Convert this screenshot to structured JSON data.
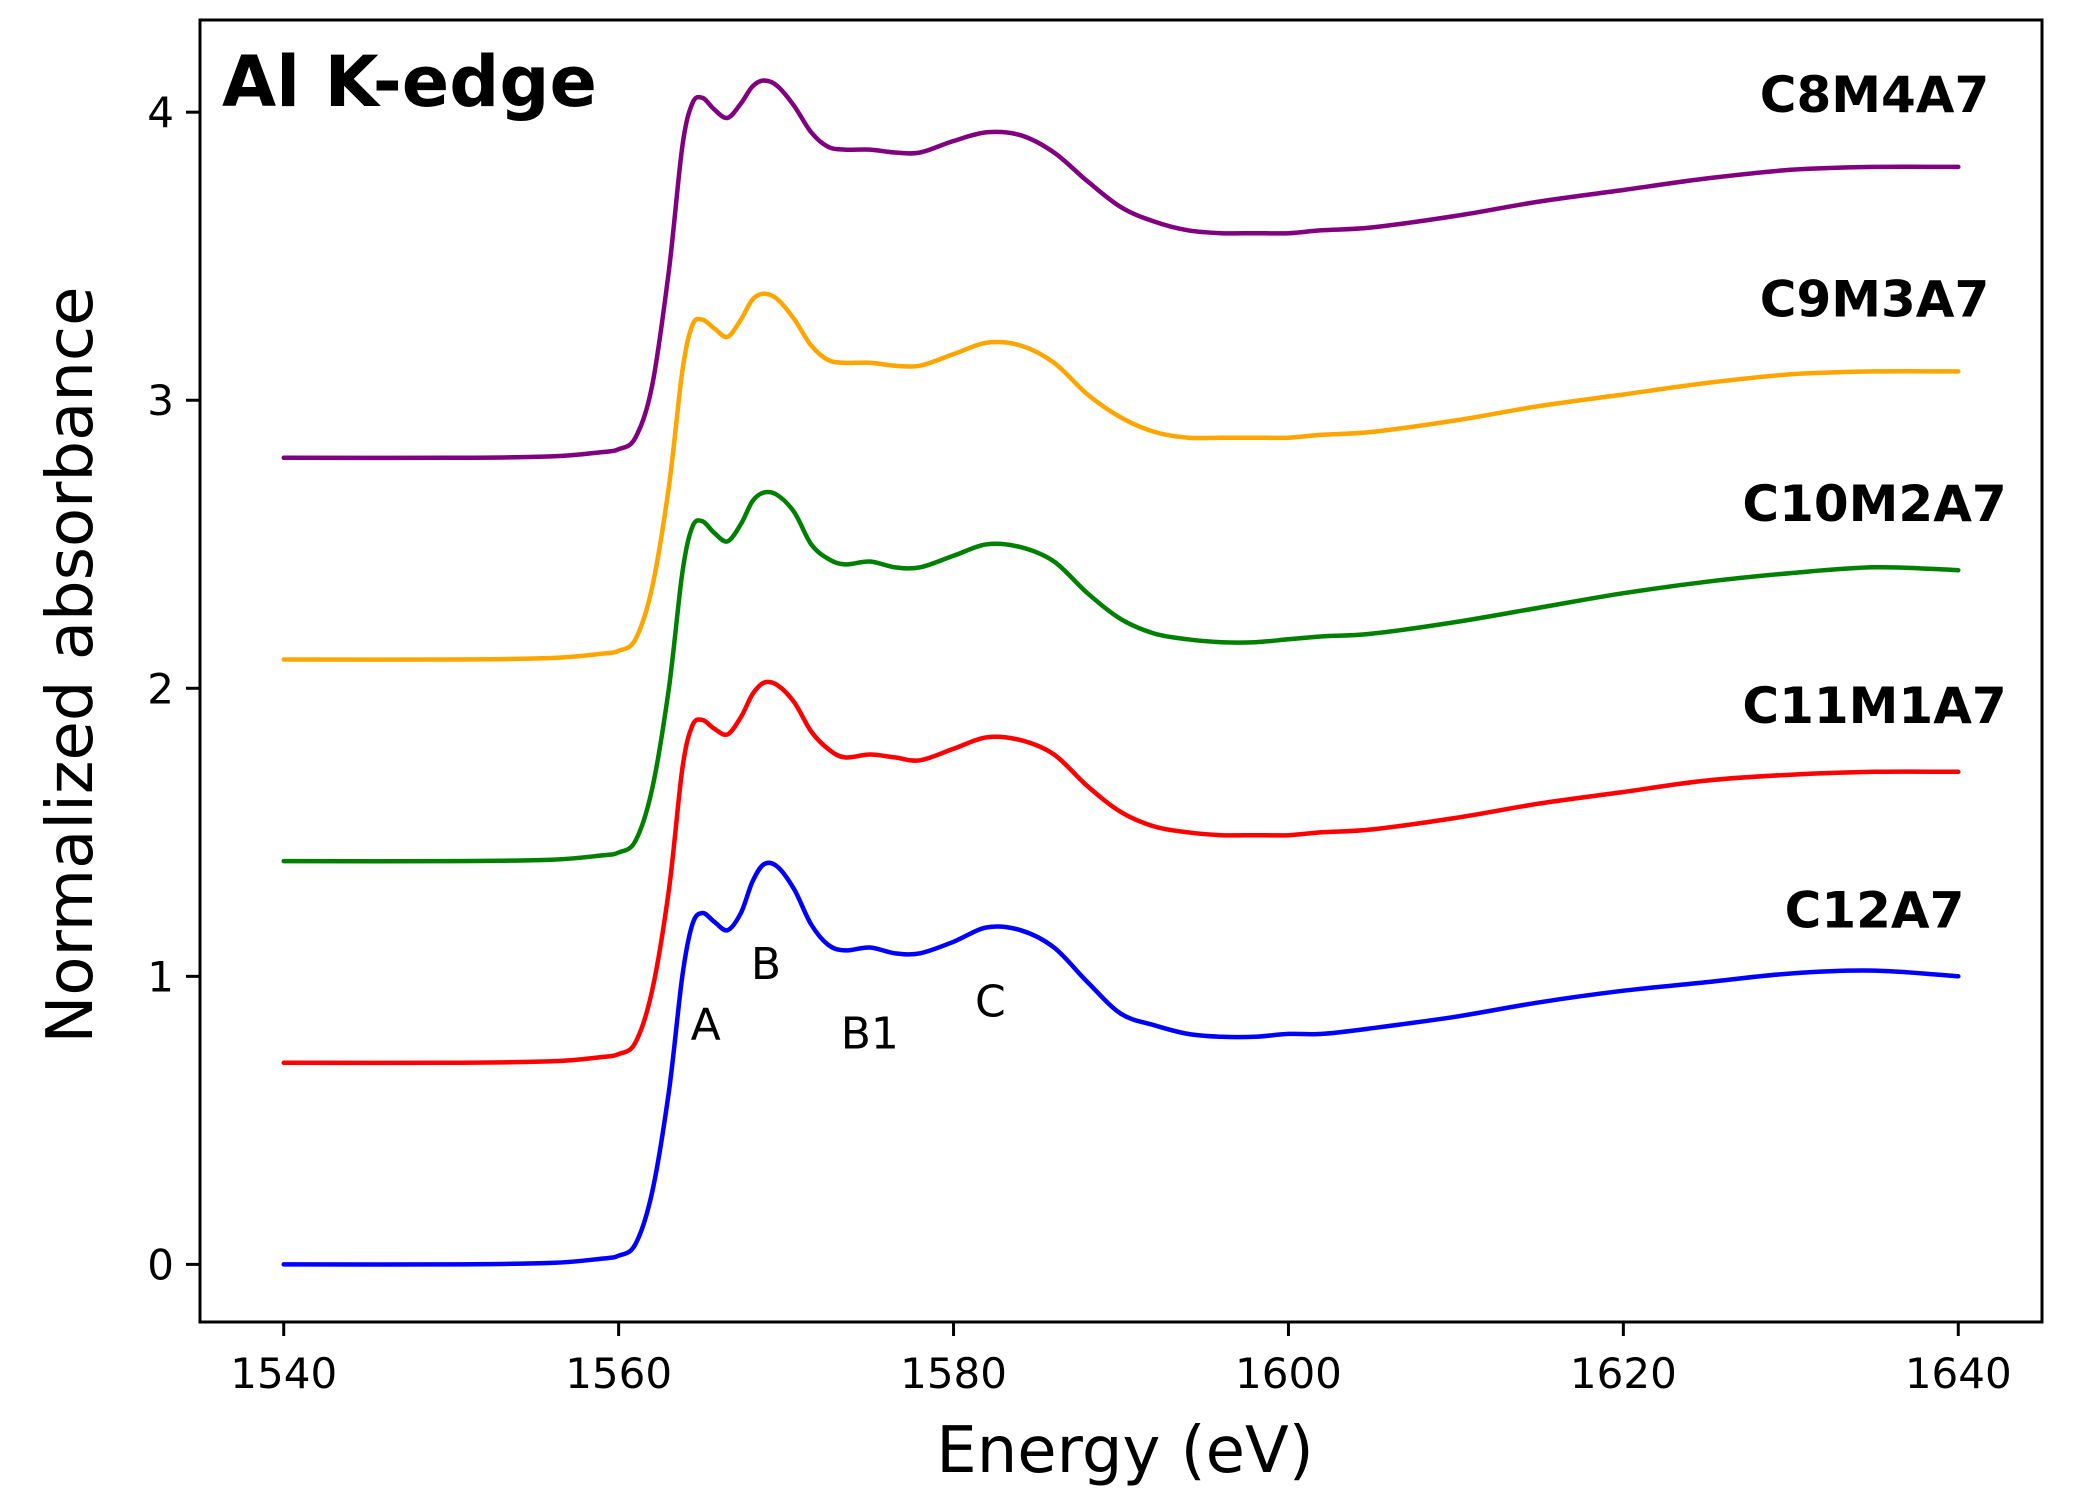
{
  "chart_data": {
    "type": "line",
    "title": "Al K-edge",
    "xlabel": "Energy (eV)",
    "ylabel": "Normalized absorbance",
    "xlim": [
      1535,
      1645
    ],
    "ylim": [
      -0.2,
      4.32
    ],
    "xticks": [
      1540,
      1560,
      1580,
      1600,
      1620,
      1640
    ],
    "yticks": [
      0,
      1,
      2,
      3,
      4
    ],
    "grid": false,
    "legend": "none",
    "series": [
      {
        "name": "C12A7",
        "color": "#0000ff",
        "label_point": [
          1635,
          1.17
        ],
        "points": [
          [
            1540,
            0.0
          ],
          [
            1550,
            0.0
          ],
          [
            1556,
            0.005
          ],
          [
            1559,
            0.02
          ],
          [
            1560,
            0.03
          ],
          [
            1561,
            0.07
          ],
          [
            1562,
            0.25
          ],
          [
            1563,
            0.6
          ],
          [
            1563.8,
            1.0
          ],
          [
            1564.4,
            1.18
          ],
          [
            1565,
            1.22
          ],
          [
            1565.7,
            1.19
          ],
          [
            1566.5,
            1.16
          ],
          [
            1567.3,
            1.22
          ],
          [
            1568,
            1.33
          ],
          [
            1568.7,
            1.39
          ],
          [
            1569.5,
            1.38
          ],
          [
            1570.5,
            1.3
          ],
          [
            1571.5,
            1.18
          ],
          [
            1572.5,
            1.11
          ],
          [
            1573.5,
            1.09
          ],
          [
            1575,
            1.1
          ],
          [
            1576.5,
            1.08
          ],
          [
            1578,
            1.08
          ],
          [
            1580,
            1.12
          ],
          [
            1582,
            1.17
          ],
          [
            1584,
            1.16
          ],
          [
            1586,
            1.1
          ],
          [
            1588,
            0.98
          ],
          [
            1590,
            0.87
          ],
          [
            1592,
            0.83
          ],
          [
            1594,
            0.8
          ],
          [
            1596,
            0.79
          ],
          [
            1598,
            0.79
          ],
          [
            1600,
            0.8
          ],
          [
            1602,
            0.8
          ],
          [
            1605,
            0.82
          ],
          [
            1610,
            0.86
          ],
          [
            1615,
            0.91
          ],
          [
            1620,
            0.95
          ],
          [
            1625,
            0.98
          ],
          [
            1630,
            1.01
          ],
          [
            1635,
            1.02
          ],
          [
            1640,
            1.0
          ]
        ]
      },
      {
        "name": "C11M1A7",
        "color": "#ff0000",
        "label_point": [
          1635,
          1.88
        ],
        "points": [
          [
            1540,
            0.7
          ],
          [
            1550,
            0.7
          ],
          [
            1556,
            0.705
          ],
          [
            1559,
            0.72
          ],
          [
            1560,
            0.73
          ],
          [
            1561,
            0.77
          ],
          [
            1562,
            0.95
          ],
          [
            1563,
            1.3
          ],
          [
            1563.8,
            1.72
          ],
          [
            1564.4,
            1.87
          ],
          [
            1565,
            1.89
          ],
          [
            1565.7,
            1.86
          ],
          [
            1566.5,
            1.84
          ],
          [
            1567.3,
            1.9
          ],
          [
            1568,
            1.98
          ],
          [
            1568.7,
            2.02
          ],
          [
            1569.5,
            2.01
          ],
          [
            1570.5,
            1.95
          ],
          [
            1571.5,
            1.85
          ],
          [
            1572.5,
            1.79
          ],
          [
            1573.5,
            1.76
          ],
          [
            1575,
            1.77
          ],
          [
            1576.5,
            1.76
          ],
          [
            1578,
            1.75
          ],
          [
            1580,
            1.79
          ],
          [
            1582,
            1.83
          ],
          [
            1584,
            1.82
          ],
          [
            1586,
            1.77
          ],
          [
            1588,
            1.66
          ],
          [
            1590,
            1.57
          ],
          [
            1592,
            1.52
          ],
          [
            1594,
            1.5
          ],
          [
            1596,
            1.49
          ],
          [
            1598,
            1.49
          ],
          [
            1600,
            1.49
          ],
          [
            1602,
            1.5
          ],
          [
            1605,
            1.51
          ],
          [
            1610,
            1.55
          ],
          [
            1615,
            1.6
          ],
          [
            1620,
            1.64
          ],
          [
            1625,
            1.68
          ],
          [
            1630,
            1.7
          ],
          [
            1635,
            1.71
          ],
          [
            1640,
            1.71
          ]
        ]
      },
      {
        "name": "C10M2A7",
        "color": "#008000",
        "label_point": [
          1635,
          2.58
        ],
        "points": [
          [
            1540,
            1.4
          ],
          [
            1550,
            1.4
          ],
          [
            1556,
            1.405
          ],
          [
            1559,
            1.42
          ],
          [
            1560,
            1.43
          ],
          [
            1561,
            1.47
          ],
          [
            1562,
            1.65
          ],
          [
            1563,
            2.0
          ],
          [
            1563.8,
            2.4
          ],
          [
            1564.4,
            2.56
          ],
          [
            1565,
            2.58
          ],
          [
            1565.7,
            2.54
          ],
          [
            1566.5,
            2.51
          ],
          [
            1567.3,
            2.57
          ],
          [
            1568,
            2.65
          ],
          [
            1568.7,
            2.68
          ],
          [
            1569.5,
            2.67
          ],
          [
            1570.5,
            2.61
          ],
          [
            1571.5,
            2.5
          ],
          [
            1572.5,
            2.45
          ],
          [
            1573.5,
            2.43
          ],
          [
            1575,
            2.44
          ],
          [
            1576.5,
            2.42
          ],
          [
            1578,
            2.42
          ],
          [
            1580,
            2.46
          ],
          [
            1582,
            2.5
          ],
          [
            1584,
            2.49
          ],
          [
            1586,
            2.44
          ],
          [
            1588,
            2.33
          ],
          [
            1590,
            2.24
          ],
          [
            1592,
            2.19
          ],
          [
            1594,
            2.17
          ],
          [
            1596,
            2.16
          ],
          [
            1598,
            2.16
          ],
          [
            1600,
            2.17
          ],
          [
            1602,
            2.18
          ],
          [
            1605,
            2.19
          ],
          [
            1610,
            2.23
          ],
          [
            1615,
            2.28
          ],
          [
            1620,
            2.33
          ],
          [
            1625,
            2.37
          ],
          [
            1630,
            2.4
          ],
          [
            1635,
            2.42
          ],
          [
            1640,
            2.41
          ]
        ]
      },
      {
        "name": "C9M3A7",
        "color": "#ffa500",
        "label_point": [
          1635,
          3.29
        ],
        "points": [
          [
            1540,
            2.1
          ],
          [
            1550,
            2.1
          ],
          [
            1556,
            2.105
          ],
          [
            1559,
            2.12
          ],
          [
            1560,
            2.13
          ],
          [
            1561,
            2.17
          ],
          [
            1562,
            2.35
          ],
          [
            1563,
            2.7
          ],
          [
            1563.8,
            3.1
          ],
          [
            1564.4,
            3.26
          ],
          [
            1565,
            3.28
          ],
          [
            1565.7,
            3.25
          ],
          [
            1566.5,
            3.22
          ],
          [
            1567.3,
            3.28
          ],
          [
            1568,
            3.35
          ],
          [
            1568.7,
            3.37
          ],
          [
            1569.5,
            3.35
          ],
          [
            1570.5,
            3.28
          ],
          [
            1571.5,
            3.19
          ],
          [
            1572.5,
            3.14
          ],
          [
            1573.5,
            3.13
          ],
          [
            1575,
            3.13
          ],
          [
            1576.5,
            3.12
          ],
          [
            1578,
            3.12
          ],
          [
            1580,
            3.16
          ],
          [
            1582,
            3.2
          ],
          [
            1584,
            3.19
          ],
          [
            1586,
            3.13
          ],
          [
            1588,
            3.02
          ],
          [
            1590,
            2.94
          ],
          [
            1592,
            2.89
          ],
          [
            1594,
            2.87
          ],
          [
            1596,
            2.87
          ],
          [
            1598,
            2.87
          ],
          [
            1600,
            2.87
          ],
          [
            1602,
            2.88
          ],
          [
            1605,
            2.89
          ],
          [
            1610,
            2.93
          ],
          [
            1615,
            2.98
          ],
          [
            1620,
            3.02
          ],
          [
            1625,
            3.06
          ],
          [
            1630,
            3.09
          ],
          [
            1635,
            3.1
          ],
          [
            1640,
            3.1
          ]
        ]
      },
      {
        "name": "C8M4A7",
        "color": "#800080",
        "label_point": [
          1635,
          4.0
        ],
        "points": [
          [
            1540,
            2.8
          ],
          [
            1550,
            2.8
          ],
          [
            1556,
            2.805
          ],
          [
            1559,
            2.82
          ],
          [
            1560,
            2.83
          ],
          [
            1561,
            2.87
          ],
          [
            1562,
            3.05
          ],
          [
            1563,
            3.45
          ],
          [
            1563.8,
            3.88
          ],
          [
            1564.4,
            4.03
          ],
          [
            1565,
            4.05
          ],
          [
            1565.7,
            4.01
          ],
          [
            1566.5,
            3.98
          ],
          [
            1567.3,
            4.03
          ],
          [
            1568,
            4.09
          ],
          [
            1568.7,
            4.11
          ],
          [
            1569.5,
            4.09
          ],
          [
            1570.5,
            4.02
          ],
          [
            1571.5,
            3.93
          ],
          [
            1572.5,
            3.88
          ],
          [
            1573.5,
            3.87
          ],
          [
            1575,
            3.87
          ],
          [
            1576.5,
            3.86
          ],
          [
            1578,
            3.86
          ],
          [
            1580,
            3.9
          ],
          [
            1582,
            3.93
          ],
          [
            1584,
            3.92
          ],
          [
            1586,
            3.86
          ],
          [
            1588,
            3.76
          ],
          [
            1590,
            3.67
          ],
          [
            1592,
            3.62
          ],
          [
            1594,
            3.59
          ],
          [
            1596,
            3.58
          ],
          [
            1598,
            3.58
          ],
          [
            1600,
            3.58
          ],
          [
            1602,
            3.59
          ],
          [
            1605,
            3.6
          ],
          [
            1610,
            3.64
          ],
          [
            1615,
            3.69
          ],
          [
            1620,
            3.73
          ],
          [
            1625,
            3.77
          ],
          [
            1630,
            3.8
          ],
          [
            1635,
            3.81
          ],
          [
            1640,
            3.81
          ]
        ]
      }
    ],
    "annotations": [
      {
        "text": "A",
        "x": 1565.2,
        "y": 0.78
      },
      {
        "text": "B",
        "x": 1568.8,
        "y": 0.99
      },
      {
        "text": "B1",
        "x": 1575.0,
        "y": 0.75
      },
      {
        "text": "C",
        "x": 1582.2,
        "y": 0.86
      }
    ]
  }
}
